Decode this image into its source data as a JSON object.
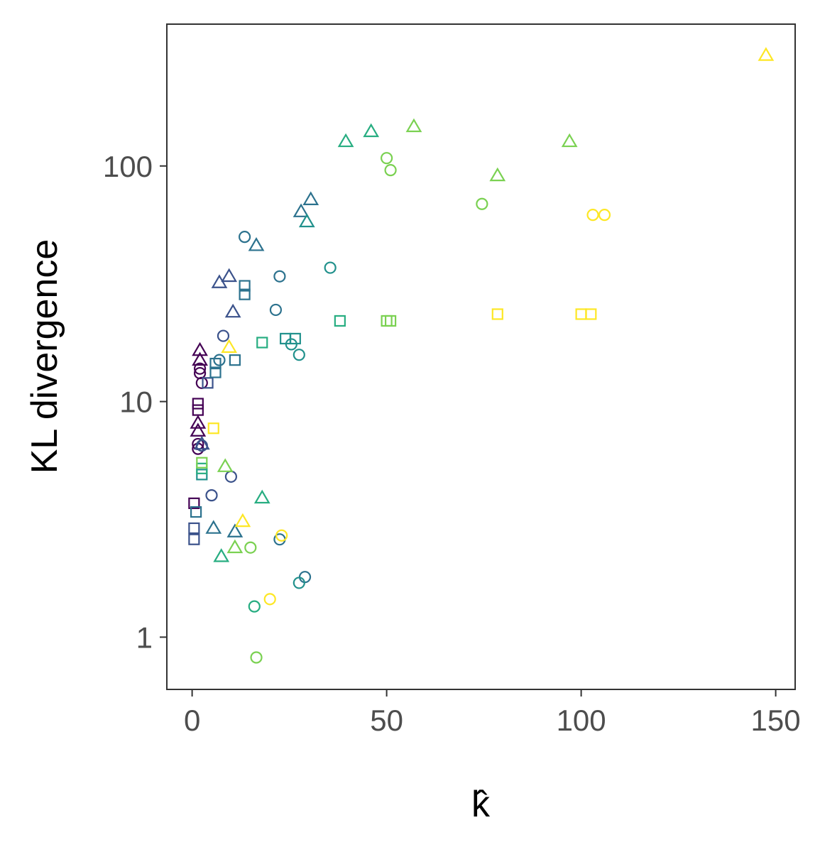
{
  "chart_data": {
    "type": "scatter",
    "title": "",
    "xlabel": "k̂",
    "ylabel": "KL divergence",
    "x_ticks": [
      "0",
      "50",
      "100",
      "150"
    ],
    "y_ticks": [
      "1",
      "10",
      "100"
    ],
    "xlim": [
      -6.5,
      155
    ],
    "ylim": [
      0.6,
      400
    ],
    "y_scale": "log10",
    "grid": false,
    "legend": "none",
    "shape_colors": {
      "c1": "#440154",
      "c2": "#3b528b",
      "c3": "#2c728e",
      "c4": "#21918c",
      "c5": "#27ad81",
      "c6": "#7ad151",
      "c7": "#fde725"
    },
    "points": [
      {
        "x": 2,
        "y": 13.2,
        "shape": "circle",
        "color": "c1"
      },
      {
        "x": 2,
        "y": 13.8,
        "shape": "circle",
        "color": "c1"
      },
      {
        "x": 2.5,
        "y": 12,
        "shape": "circle",
        "color": "c1"
      },
      {
        "x": 1.5,
        "y": 6.6,
        "shape": "circle",
        "color": "c1"
      },
      {
        "x": 1.5,
        "y": 6.3,
        "shape": "circle",
        "color": "c1"
      },
      {
        "x": 2,
        "y": 16.5,
        "shape": "triangle",
        "color": "c1"
      },
      {
        "x": 2,
        "y": 15,
        "shape": "triangle",
        "color": "c1"
      },
      {
        "x": 1.5,
        "y": 8.1,
        "shape": "triangle",
        "color": "c1"
      },
      {
        "x": 1.5,
        "y": 7.5,
        "shape": "triangle",
        "color": "c1"
      },
      {
        "x": 1.5,
        "y": 9.8,
        "shape": "square",
        "color": "c1"
      },
      {
        "x": 1.5,
        "y": 9.2,
        "shape": "square",
        "color": "c1"
      },
      {
        "x": 0.5,
        "y": 3.7,
        "shape": "square",
        "color": "c1"
      },
      {
        "x": 8,
        "y": 19,
        "shape": "circle",
        "color": "c2"
      },
      {
        "x": 5,
        "y": 4,
        "shape": "circle",
        "color": "c2"
      },
      {
        "x": 10,
        "y": 4.8,
        "shape": "circle",
        "color": "c2"
      },
      {
        "x": 2.5,
        "y": 6.5,
        "shape": "circle",
        "color": "c2"
      },
      {
        "x": 9.5,
        "y": 34,
        "shape": "triangle",
        "color": "c2"
      },
      {
        "x": 7,
        "y": 32,
        "shape": "triangle",
        "color": "c2"
      },
      {
        "x": 10.5,
        "y": 24,
        "shape": "triangle",
        "color": "c2"
      },
      {
        "x": 2.5,
        "y": 6.6,
        "shape": "triangle",
        "color": "c2"
      },
      {
        "x": 4,
        "y": 12,
        "shape": "square",
        "color": "c2"
      },
      {
        "x": 0.5,
        "y": 2.9,
        "shape": "square",
        "color": "c2"
      },
      {
        "x": 0.5,
        "y": 2.6,
        "shape": "square",
        "color": "c2"
      },
      {
        "x": 13.5,
        "y": 50,
        "shape": "circle",
        "color": "c3"
      },
      {
        "x": 22.5,
        "y": 34,
        "shape": "circle",
        "color": "c3"
      },
      {
        "x": 21.5,
        "y": 24.5,
        "shape": "circle",
        "color": "c3"
      },
      {
        "x": 7,
        "y": 15,
        "shape": "circle",
        "color": "c3"
      },
      {
        "x": 22.5,
        "y": 2.6,
        "shape": "circle",
        "color": "c3"
      },
      {
        "x": 29,
        "y": 1.8,
        "shape": "circle",
        "color": "c3"
      },
      {
        "x": 30.5,
        "y": 72,
        "shape": "triangle",
        "color": "c3"
      },
      {
        "x": 28,
        "y": 64,
        "shape": "triangle",
        "color": "c3"
      },
      {
        "x": 16.5,
        "y": 46,
        "shape": "triangle",
        "color": "c3"
      },
      {
        "x": 11,
        "y": 2.8,
        "shape": "triangle",
        "color": "c3"
      },
      {
        "x": 5.5,
        "y": 2.9,
        "shape": "triangle",
        "color": "c3"
      },
      {
        "x": 13.5,
        "y": 31,
        "shape": "square",
        "color": "c3"
      },
      {
        "x": 13.5,
        "y": 28.5,
        "shape": "square",
        "color": "c3"
      },
      {
        "x": 11,
        "y": 15,
        "shape": "square",
        "color": "c3"
      },
      {
        "x": 6,
        "y": 14.5,
        "shape": "square",
        "color": "c3"
      },
      {
        "x": 6,
        "y": 13.3,
        "shape": "square",
        "color": "c3"
      },
      {
        "x": 1,
        "y": 3.4,
        "shape": "square",
        "color": "c3"
      },
      {
        "x": 35.5,
        "y": 37,
        "shape": "circle",
        "color": "c4"
      },
      {
        "x": 25.5,
        "y": 17.5,
        "shape": "circle",
        "color": "c4"
      },
      {
        "x": 27.5,
        "y": 15.8,
        "shape": "circle",
        "color": "c4"
      },
      {
        "x": 27.5,
        "y": 1.7,
        "shape": "circle",
        "color": "c4"
      },
      {
        "x": 29.5,
        "y": 58,
        "shape": "triangle",
        "color": "c4"
      },
      {
        "x": 24,
        "y": 18.5,
        "shape": "square",
        "color": "c4"
      },
      {
        "x": 26.5,
        "y": 18.5,
        "shape": "square",
        "color": "c4"
      },
      {
        "x": 2.5,
        "y": 4.9,
        "shape": "square",
        "color": "c4"
      },
      {
        "x": 16,
        "y": 1.35,
        "shape": "circle",
        "color": "c5"
      },
      {
        "x": 39.5,
        "y": 127,
        "shape": "triangle",
        "color": "c5"
      },
      {
        "x": 46,
        "y": 140,
        "shape": "triangle",
        "color": "c5"
      },
      {
        "x": 18,
        "y": 3.9,
        "shape": "triangle",
        "color": "c5"
      },
      {
        "x": 7.5,
        "y": 2.2,
        "shape": "triangle",
        "color": "c5"
      },
      {
        "x": 18,
        "y": 17.8,
        "shape": "square",
        "color": "c5"
      },
      {
        "x": 38,
        "y": 22,
        "shape": "square",
        "color": "c5"
      },
      {
        "x": 2.5,
        "y": 5.2,
        "shape": "square",
        "color": "c5"
      },
      {
        "x": 50,
        "y": 108,
        "shape": "circle",
        "color": "c6"
      },
      {
        "x": 51,
        "y": 96,
        "shape": "circle",
        "color": "c6"
      },
      {
        "x": 74.5,
        "y": 69,
        "shape": "circle",
        "color": "c6"
      },
      {
        "x": 15,
        "y": 2.4,
        "shape": "circle",
        "color": "c6"
      },
      {
        "x": 16.5,
        "y": 0.82,
        "shape": "circle",
        "color": "c6"
      },
      {
        "x": 57,
        "y": 147,
        "shape": "triangle",
        "color": "c6"
      },
      {
        "x": 97,
        "y": 127,
        "shape": "triangle",
        "color": "c6"
      },
      {
        "x": 78.5,
        "y": 91,
        "shape": "triangle",
        "color": "c6"
      },
      {
        "x": 8.5,
        "y": 5.3,
        "shape": "triangle",
        "color": "c6"
      },
      {
        "x": 11,
        "y": 2.4,
        "shape": "triangle",
        "color": "c6"
      },
      {
        "x": 50,
        "y": 22,
        "shape": "square",
        "color": "c6"
      },
      {
        "x": 51,
        "y": 22,
        "shape": "square",
        "color": "c6"
      },
      {
        "x": 2.5,
        "y": 5.5,
        "shape": "square",
        "color": "c6"
      },
      {
        "x": 103,
        "y": 62,
        "shape": "circle",
        "color": "c7"
      },
      {
        "x": 106,
        "y": 62,
        "shape": "circle",
        "color": "c7"
      },
      {
        "x": 23,
        "y": 2.7,
        "shape": "circle",
        "color": "c7"
      },
      {
        "x": 20,
        "y": 1.45,
        "shape": "circle",
        "color": "c7"
      },
      {
        "x": 147.5,
        "y": 295,
        "shape": "triangle",
        "color": "c7"
      },
      {
        "x": 9.5,
        "y": 17,
        "shape": "triangle",
        "color": "c7"
      },
      {
        "x": 13,
        "y": 3.1,
        "shape": "triangle",
        "color": "c7"
      },
      {
        "x": 78.5,
        "y": 23.5,
        "shape": "square",
        "color": "c7"
      },
      {
        "x": 100,
        "y": 23.5,
        "shape": "square",
        "color": "c7"
      },
      {
        "x": 102.5,
        "y": 23.5,
        "shape": "square",
        "color": "c7"
      },
      {
        "x": 5.5,
        "y": 7.7,
        "shape": "square",
        "color": "c7"
      }
    ]
  }
}
